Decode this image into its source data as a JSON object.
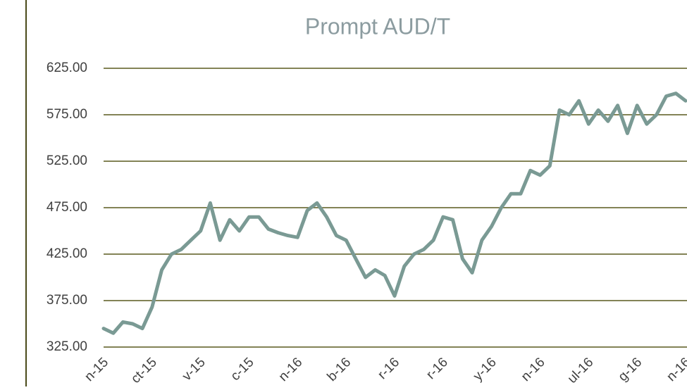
{
  "chart_data": {
    "type": "line",
    "title": "Prompt AUD/T",
    "categories": [
      "n-15",
      null,
      null,
      null,
      null,
      "ct-15",
      null,
      null,
      null,
      null,
      "v-15",
      null,
      null,
      null,
      null,
      "c-15",
      null,
      null,
      null,
      null,
      "n-16",
      null,
      null,
      null,
      null,
      "b-16",
      null,
      null,
      null,
      null,
      "r-16",
      null,
      null,
      null,
      null,
      "r-16",
      null,
      null,
      null,
      null,
      "y-16",
      null,
      null,
      null,
      null,
      "n-16",
      null,
      null,
      null,
      null,
      "ul-16",
      null,
      null,
      null,
      null,
      "g-16",
      null,
      null,
      null,
      null,
      "n-16"
    ],
    "series": [
      {
        "color": "#7a9a94",
        "values": [
          345,
          340,
          352,
          350,
          345,
          368,
          408,
          425,
          430,
          440,
          450,
          480,
          440,
          462,
          450,
          465,
          465,
          452,
          448,
          445,
          443,
          472,
          480,
          465,
          445,
          440,
          420,
          400,
          408,
          402,
          380,
          412,
          425,
          430,
          440,
          465,
          462,
          420,
          405,
          440,
          455,
          475,
          490,
          490,
          515,
          510,
          520,
          580,
          575,
          590,
          565,
          580,
          568,
          585,
          555,
          585,
          565,
          575,
          595,
          598,
          590
        ]
      }
    ],
    "ylim": [
      325,
      625
    ],
    "yticks": [
      {
        "value": 325,
        "label": "325.00"
      },
      {
        "value": 375,
        "label": "375.00"
      },
      {
        "value": 425,
        "label": "425.00"
      },
      {
        "value": 475,
        "label": "475.00"
      },
      {
        "value": 525,
        "label": "525.00"
      },
      {
        "value": 575,
        "label": "575.00"
      },
      {
        "value": 625,
        "label": "625.00"
      }
    ],
    "grid": true
  }
}
